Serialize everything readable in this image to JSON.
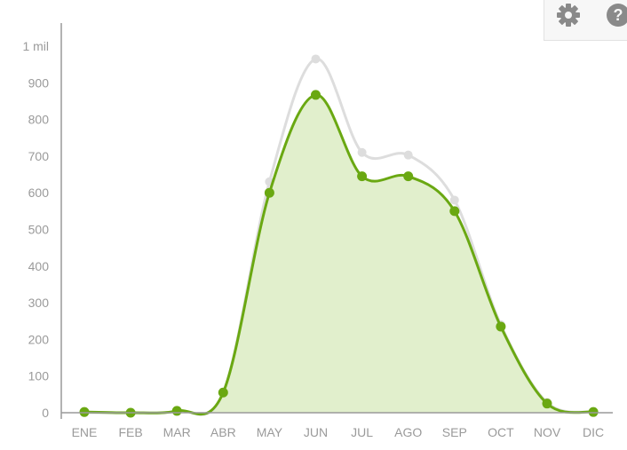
{
  "toolbar": {
    "settings_icon": "gear-icon",
    "help_icon": "help-circle-icon"
  },
  "colors": {
    "primary_line": "#6aa812",
    "primary_fill": "#e1efcc",
    "secondary_line": "#dddddd",
    "axis": "#9a9a9a",
    "tick_text": "#9a9a9a"
  },
  "chart_data": {
    "type": "area",
    "categories": [
      "ENE",
      "FEB",
      "MAR",
      "ABR",
      "MAY",
      "JUN",
      "JUL",
      "AGO",
      "SEP",
      "OCT",
      "NOV",
      "DIC"
    ],
    "ylim": [
      0,
      1000
    ],
    "yticks": [
      0,
      100,
      200,
      300,
      400,
      500,
      600,
      700,
      800,
      900,
      1000
    ],
    "ytick_labels": [
      "0",
      "100",
      "200",
      "300",
      "400",
      "500",
      "600",
      "700",
      "800",
      "900",
      "1 mil"
    ],
    "grid": false,
    "legend": "none",
    "series": [
      {
        "values": [
          0,
          0,
          5,
          55,
          630,
          965,
          710,
          703,
          580,
          240,
          28,
          2
        ]
      },
      {
        "values": [
          2,
          0,
          5,
          55,
          600,
          867,
          645,
          645,
          550,
          235,
          25,
          2
        ]
      }
    ]
  }
}
